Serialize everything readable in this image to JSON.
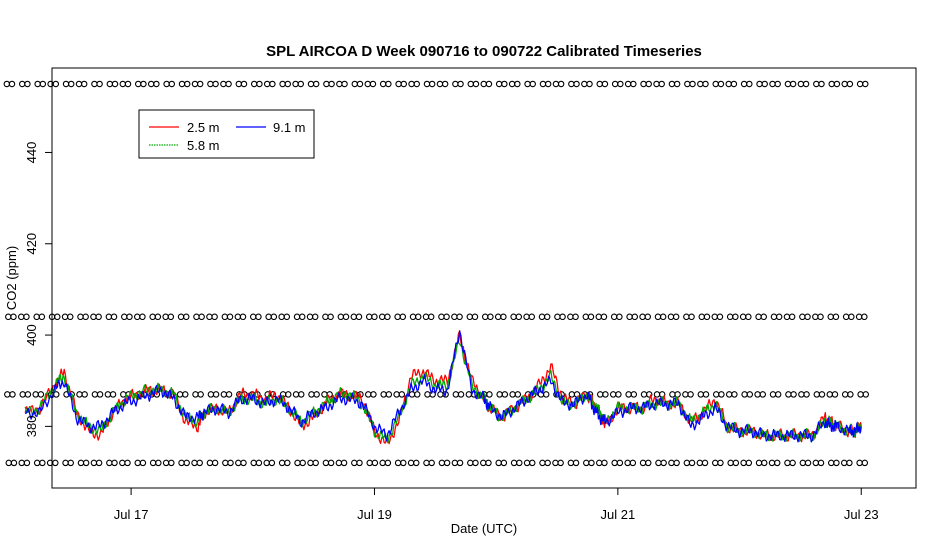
{
  "chart_data": {
    "type": "line",
    "title": "SPL AIRCOA D  Week 090716 to 090722  Calibrated Timeseries",
    "xlabel": "Date (UTC)",
    "ylabel": "CO2 (ppm)",
    "x_unit": "days since Jul 16 00:00 UTC",
    "xlim": [
      0.35,
      7.45
    ],
    "ylim": [
      366.5,
      458.5
    ],
    "x_ticks": [
      {
        "value": 1,
        "label": "Jul 17"
      },
      {
        "value": 3,
        "label": "Jul 19"
      },
      {
        "value": 5,
        "label": "Jul 21"
      },
      {
        "value": 7,
        "label": "Jul 23"
      }
    ],
    "y_ticks": [
      {
        "value": 380,
        "label": "380"
      },
      {
        "value": 400,
        "label": "400"
      },
      {
        "value": 420,
        "label": "420"
      },
      {
        "value": 440,
        "label": "440"
      }
    ],
    "legend": {
      "position": "top-left",
      "entries": [
        {
          "label": "2.5 m",
          "color": "#ff0000"
        },
        {
          "label": "5.8 m",
          "color": "#00aa00"
        },
        {
          "label": "9.1 m",
          "color": "#0000ff"
        }
      ]
    },
    "series": [
      {
        "name": "2.5 m",
        "color": "#ff0000",
        "x": [
          0.13,
          0.25,
          0.37,
          0.45,
          0.55,
          0.65,
          0.75,
          0.85,
          0.95,
          1.05,
          1.15,
          1.25,
          1.35,
          1.45,
          1.55,
          1.6,
          1.7,
          1.8,
          1.9,
          2.0,
          2.1,
          2.2,
          2.3,
          2.4,
          2.5,
          2.6,
          2.7,
          2.8,
          2.9,
          3.0,
          3.1,
          3.2,
          3.3,
          3.4,
          3.5,
          3.6,
          3.7,
          3.8,
          3.9,
          3.95,
          4.05,
          4.15,
          4.25,
          4.35,
          4.45,
          4.55,
          4.65,
          4.75,
          4.8,
          4.85,
          4.9,
          5.0,
          5.1,
          5.2,
          5.3,
          5.4,
          5.5,
          5.6,
          5.7,
          5.8,
          5.9,
          6.0,
          6.1,
          6.2,
          6.3,
          6.4,
          6.5,
          6.6,
          6.7,
          6.75,
          6.8,
          6.9,
          6.95,
          7.0
        ],
        "values": [
          383,
          384,
          389,
          392,
          383,
          379,
          378,
          383,
          386,
          387,
          388,
          388,
          387,
          381,
          380,
          383,
          384,
          383,
          387,
          387,
          386,
          387,
          384,
          380,
          382,
          385,
          387,
          387,
          386,
          379,
          376,
          381,
          391,
          392,
          390,
          390,
          400,
          390,
          386,
          384,
          382,
          384,
          386,
          389,
          393,
          386,
          385,
          387,
          385,
          383,
          380,
          384,
          384,
          384,
          386,
          385,
          385,
          381,
          383,
          386,
          380,
          379,
          379,
          378,
          378,
          378,
          378,
          378,
          382,
          381,
          380,
          379,
          379,
          380
        ]
      },
      {
        "name": "5.8 m",
        "color": "#00aa00",
        "x": [
          0.13,
          0.25,
          0.37,
          0.45,
          0.55,
          0.65,
          0.75,
          0.85,
          0.95,
          1.05,
          1.15,
          1.25,
          1.35,
          1.45,
          1.55,
          1.6,
          1.7,
          1.8,
          1.9,
          2.0,
          2.1,
          2.2,
          2.3,
          2.4,
          2.5,
          2.6,
          2.7,
          2.8,
          2.9,
          3.0,
          3.1,
          3.2,
          3.3,
          3.4,
          3.5,
          3.6,
          3.7,
          3.8,
          3.9,
          3.95,
          4.05,
          4.15,
          4.25,
          4.35,
          4.45,
          4.55,
          4.65,
          4.75,
          4.8,
          4.85,
          4.9,
          5.0,
          5.1,
          5.2,
          5.3,
          5.4,
          5.5,
          5.6,
          5.7,
          5.8,
          5.9,
          6.0,
          6.1,
          6.2,
          6.3,
          6.4,
          6.5,
          6.6,
          6.7,
          6.75,
          6.8,
          6.9,
          6.95,
          7.0
        ],
        "values": [
          383,
          384,
          389,
          391,
          383,
          380,
          379,
          383,
          386,
          387,
          388,
          388,
          387,
          382,
          381,
          383,
          384,
          383,
          386,
          386,
          385,
          386,
          384,
          381,
          383,
          385,
          387,
          387,
          385,
          379,
          377,
          382,
          389,
          391,
          389,
          389,
          399,
          389,
          386,
          384,
          382,
          384,
          386,
          388,
          391,
          385,
          385,
          387,
          385,
          383,
          381,
          384,
          384,
          384,
          385,
          385,
          385,
          381,
          383,
          385,
          380,
          379,
          379,
          378,
          378,
          378,
          378,
          378,
          381,
          381,
          380,
          379,
          379,
          380
        ]
      },
      {
        "name": "9.1 m",
        "color": "#0000ff",
        "x": [
          0.13,
          0.25,
          0.37,
          0.45,
          0.55,
          0.65,
          0.75,
          0.85,
          0.95,
          1.05,
          1.15,
          1.25,
          1.35,
          1.45,
          1.55,
          1.6,
          1.7,
          1.8,
          1.9,
          2.0,
          2.1,
          2.2,
          2.3,
          2.4,
          2.5,
          2.6,
          2.7,
          2.8,
          2.9,
          3.0,
          3.1,
          3.2,
          3.3,
          3.4,
          3.5,
          3.6,
          3.7,
          3.8,
          3.9,
          3.95,
          4.05,
          4.15,
          4.25,
          4.35,
          4.45,
          4.55,
          4.65,
          4.75,
          4.8,
          4.85,
          4.9,
          5.0,
          5.1,
          5.2,
          5.3,
          5.4,
          5.5,
          5.6,
          5.7,
          5.8,
          5.9,
          6.0,
          6.1,
          6.2,
          6.3,
          6.4,
          6.5,
          6.6,
          6.7,
          6.75,
          6.8,
          6.9,
          6.95,
          7.0
        ],
        "values": [
          383,
          383,
          388,
          390,
          382,
          380,
          380,
          383,
          385,
          386,
          387,
          388,
          386,
          382,
          382,
          383,
          384,
          383,
          386,
          386,
          385,
          386,
          384,
          381,
          383,
          384,
          386,
          386,
          385,
          380,
          378,
          383,
          388,
          390,
          388,
          388,
          401,
          388,
          386,
          384,
          382,
          384,
          386,
          388,
          390,
          385,
          385,
          387,
          384,
          382,
          381,
          383,
          384,
          384,
          385,
          385,
          385,
          380,
          382,
          384,
          380,
          379,
          379,
          378,
          378,
          378,
          378,
          378,
          381,
          380,
          380,
          379,
          379,
          380
        ]
      }
    ],
    "reference_marker_rows": [
      {
        "value": 455,
        "marker": "o"
      },
      {
        "value": 404,
        "marker": "o"
      },
      {
        "value": 387,
        "marker": "o"
      },
      {
        "value": 372,
        "marker": "o"
      }
    ],
    "marker_x_range": [
      0.0,
      7.0
    ]
  }
}
